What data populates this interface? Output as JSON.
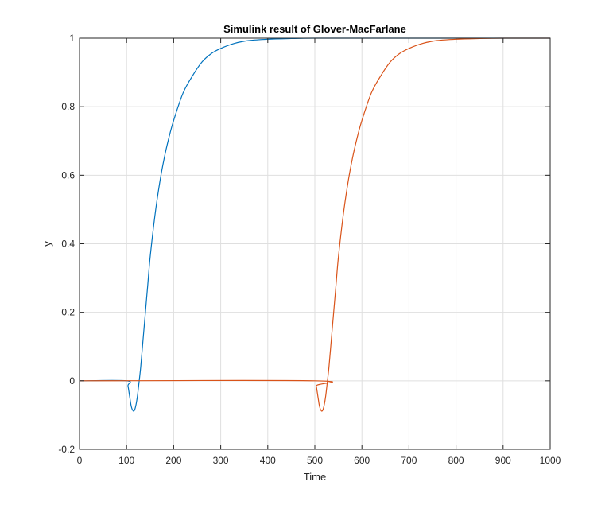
{
  "chart_data": {
    "type": "line",
    "title": "Simulink result of Glover-MacFarlane",
    "xlabel": "Time",
    "ylabel": "y",
    "xlim": [
      0,
      1000
    ],
    "ylim": [
      -0.2,
      1
    ],
    "xticks": [
      0,
      100,
      200,
      300,
      400,
      500,
      600,
      700,
      800,
      900,
      1000
    ],
    "yticks": [
      -0.2,
      0,
      0.2,
      0.4,
      0.6,
      0.8,
      1
    ],
    "xtick_labels": [
      "0",
      "100",
      "200",
      "300",
      "400",
      "500",
      "600",
      "700",
      "800",
      "900",
      "1000"
    ],
    "ytick_labels": [
      "-0.2",
      "0",
      "0.2",
      "0.4",
      "0.6",
      "0.8",
      "1"
    ],
    "grid": true,
    "legend": "none",
    "series": [
      {
        "color": "#0072BD",
        "x": [
          0,
          100,
          103,
          107,
          110,
          114,
          117,
          120,
          123,
          126,
          130,
          135,
          140,
          145,
          150,
          160,
          170,
          180,
          190,
          200,
          220,
          240,
          260,
          280,
          300,
          330,
          360,
          400,
          450,
          500,
          600,
          700,
          800,
          900,
          1000
        ],
        "y": [
          0,
          0,
          -0.015,
          -0.05,
          -0.075,
          -0.088,
          -0.085,
          -0.07,
          -0.045,
          -0.01,
          0.04,
          0.12,
          0.2,
          0.28,
          0.36,
          0.48,
          0.575,
          0.65,
          0.71,
          0.76,
          0.84,
          0.89,
          0.93,
          0.955,
          0.97,
          0.985,
          0.993,
          0.997,
          0.999,
          1,
          1,
          1,
          1,
          1,
          1
        ]
      },
      {
        "color": "#D95319",
        "x": [
          0,
          500,
          503,
          507,
          510,
          514,
          517,
          520,
          523,
          526,
          530,
          535,
          540,
          545,
          550,
          560,
          570,
          580,
          590,
          600,
          620,
          640,
          660,
          680,
          700,
          730,
          760,
          800,
          850,
          900,
          950,
          1000
        ],
        "y": [
          0,
          0,
          -0.015,
          -0.05,
          -0.075,
          -0.088,
          -0.085,
          -0.07,
          -0.045,
          -0.01,
          0.04,
          0.12,
          0.2,
          0.28,
          0.36,
          0.48,
          0.575,
          0.65,
          0.71,
          0.76,
          0.84,
          0.89,
          0.93,
          0.955,
          0.97,
          0.985,
          0.993,
          0.997,
          0.999,
          1,
          1,
          1
        ]
      }
    ]
  }
}
